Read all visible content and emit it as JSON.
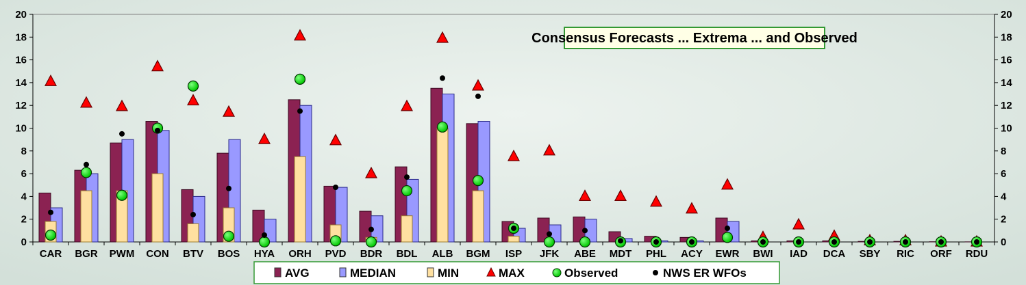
{
  "chart_data": {
    "type": "bar",
    "title": "Consensus Forecasts ... Extrema ... and Observed",
    "categories": [
      "CAR",
      "BGR",
      "PWM",
      "CON",
      "BTV",
      "BOS",
      "HYA",
      "ORH",
      "PVD",
      "BDR",
      "BDL",
      "ALB",
      "BGM",
      "ISP",
      "JFK",
      "ABE",
      "MDT",
      "PHL",
      "ACY",
      "EWR",
      "BWI",
      "IAD",
      "DCA",
      "SBY",
      "RIC",
      "ORF",
      "RDU"
    ],
    "ylim": [
      0,
      20
    ],
    "yticks": [
      0,
      2,
      4,
      6,
      8,
      10,
      12,
      14,
      16,
      18,
      20
    ],
    "grid": false,
    "legend_position": "bottom",
    "colors": {
      "AVG": "#8b2252",
      "MEDIAN": "#9999ff",
      "MIN": "#ffe0a0",
      "MAX": "#ff0000",
      "Observed": "#00ee00",
      "NWS ER WFOs": "#000000",
      "background": "#dfe9e4",
      "title_border": "#339933"
    },
    "series": [
      {
        "name": "AVG",
        "kind": "bar",
        "values": [
          4.3,
          6.3,
          8.7,
          10.6,
          4.6,
          7.8,
          2.8,
          12.5,
          4.9,
          2.7,
          6.6,
          13.5,
          10.4,
          1.8,
          2.1,
          2.2,
          0.9,
          0.5,
          0.4,
          2.1,
          0.1,
          0.1,
          0.1,
          0.05,
          0.05,
          0.02,
          0.01
        ]
      },
      {
        "name": "MEDIAN",
        "kind": "bar",
        "values": [
          3.0,
          6.0,
          9.0,
          9.8,
          4.0,
          9.0,
          2.0,
          12.0,
          4.8,
          2.3,
          5.5,
          13.0,
          10.6,
          1.2,
          1.5,
          2.0,
          0.3,
          0.1,
          0.1,
          1.8,
          0.0,
          0.0,
          0.0,
          0.0,
          0.0,
          0.0,
          0.0
        ]
      },
      {
        "name": "MIN",
        "kind": "bar",
        "values": [
          1.8,
          4.5,
          4.5,
          6.0,
          1.6,
          3.0,
          0.0,
          7.5,
          1.5,
          0.4,
          2.3,
          10.0,
          4.5,
          0.5,
          0.0,
          0.0,
          0.0,
          0.0,
          0.0,
          0.0,
          0.0,
          0.0,
          0.0,
          0.0,
          0.0,
          0.0,
          0.0
        ]
      },
      {
        "name": "MAX",
        "kind": "triangle",
        "values": [
          14.1,
          12.2,
          11.9,
          15.4,
          12.4,
          11.4,
          9.0,
          18.1,
          8.9,
          6.0,
          11.9,
          17.9,
          13.7,
          7.5,
          8.0,
          4.0,
          4.0,
          3.5,
          2.9,
          5.0,
          0.4,
          1.5,
          0.5,
          0.1,
          0.1,
          0.0,
          0.0
        ]
      },
      {
        "name": "Observed",
        "kind": "circle",
        "values": [
          0.6,
          6.1,
          4.1,
          10.0,
          13.7,
          0.5,
          0.0,
          14.3,
          0.1,
          0.0,
          4.5,
          10.1,
          5.4,
          1.2,
          0.0,
          0.0,
          0.0,
          0.0,
          0.0,
          0.4,
          0.0,
          0.0,
          0.0,
          0.0,
          0.0,
          0.0,
          0.0
        ]
      },
      {
        "name": "NWS ER WFOs",
        "kind": "dot",
        "values": [
          2.6,
          6.8,
          9.5,
          9.8,
          2.4,
          4.7,
          0.6,
          11.5,
          4.8,
          1.1,
          5.7,
          14.4,
          12.8,
          1.2,
          0.7,
          1.0,
          0.1,
          0.0,
          0.0,
          1.2,
          0.0,
          0.0,
          0.0,
          0.0,
          0.0,
          0.0,
          0.0
        ]
      }
    ]
  }
}
